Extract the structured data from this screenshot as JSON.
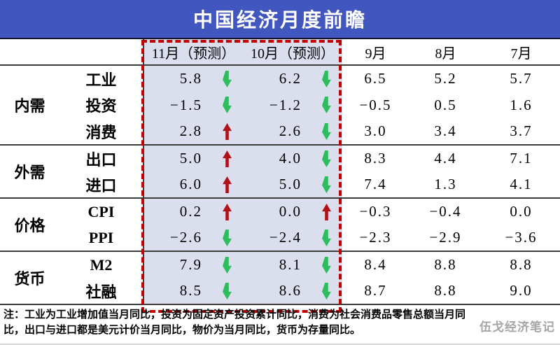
{
  "title": "中国经济月度前瞻",
  "watermark": "伍戈经济笔记",
  "note": {
    "line1": "注：工业为工业增加值当月同比，投资为固定资产投资累计同比，消费为社会消费品零售总额当月同",
    "line2": "比，出口与进口都是美元计价当月同比，物价为当月同比，货币为存量同比。"
  },
  "colors": {
    "header_bg": "#4156BE",
    "forecast_bg": "#DADEED",
    "dash_red": "#C00000",
    "up_red": "#B0121A",
    "down_green": "#2EBD5E",
    "line_dark": "#3C3C3C",
    "watermark_gray": "#A6A6A6"
  },
  "table": {
    "columns": [
      "11月（预测）",
      "10月（预测）",
      "9月",
      "8月",
      "7月"
    ],
    "groups": [
      "内需",
      "外需",
      "价格",
      "货币"
    ],
    "rows": [
      {
        "indicator": "工业",
        "v1": "5.8",
        "a1": "down",
        "v2": "6.2",
        "a2": "down",
        "v3": "6.5",
        "v4": "5.2",
        "v5": "5.7"
      },
      {
        "indicator": "投资",
        "v1": "−1.5",
        "a1": "down",
        "v2": "−1.2",
        "a2": "down",
        "v3": "−0.5",
        "v4": "0.5",
        "v5": "1.6"
      },
      {
        "indicator": "消费",
        "v1": "2.8",
        "a1": "up",
        "v2": "2.6",
        "a2": "down",
        "v3": "3.0",
        "v4": "3.4",
        "v5": "3.7"
      },
      {
        "indicator": "出口",
        "v1": "5.0",
        "a1": "up",
        "v2": "4.0",
        "a2": "down",
        "v3": "8.3",
        "v4": "4.4",
        "v5": "7.1"
      },
      {
        "indicator": "进口",
        "v1": "6.0",
        "a1": "up",
        "v2": "5.0",
        "a2": "down",
        "v3": "7.4",
        "v4": "1.3",
        "v5": "4.1"
      },
      {
        "indicator": "CPI",
        "v1": "0.2",
        "a1": "up",
        "v2": "0.0",
        "a2": "up",
        "v3": "−0.3",
        "v4": "−0.4",
        "v5": "0.0"
      },
      {
        "indicator": "PPI",
        "v1": "−2.6",
        "a1": "down",
        "v2": "−2.4",
        "a2": "down",
        "v3": "−2.3",
        "v4": "−2.9",
        "v5": "−3.6"
      },
      {
        "indicator": "M2",
        "v1": "7.9",
        "a1": "down",
        "v2": "8.1",
        "a2": "down",
        "v3": "8.4",
        "v4": "8.8",
        "v5": "8.8"
      },
      {
        "indicator": "社融",
        "v1": "8.5",
        "a1": "down",
        "v2": "8.6",
        "a2": "down",
        "v3": "8.7",
        "v4": "8.8",
        "v5": "9.0"
      }
    ]
  },
  "chart_data": {
    "type": "table",
    "title": "中国经济月度前瞻",
    "column_headers": [
      "11月（预测）",
      "10月（预测）",
      "9月",
      "8月",
      "7月"
    ],
    "legend": {
      "up_arrow": "较上月上升（红）",
      "down_arrow": "较上月下降（绿）"
    },
    "row_groups": [
      {
        "group": "内需",
        "rows": [
          {
            "indicator": "工业",
            "values": [
              5.8,
              6.2,
              6.5,
              5.2,
              5.7
            ],
            "forecast_trends": [
              "down",
              "down"
            ]
          },
          {
            "indicator": "投资",
            "values": [
              -1.5,
              -1.2,
              -0.5,
              0.5,
              1.6
            ],
            "forecast_trends": [
              "down",
              "down"
            ]
          },
          {
            "indicator": "消费",
            "values": [
              2.8,
              2.6,
              3.0,
              3.4,
              3.7
            ],
            "forecast_trends": [
              "up",
              "down"
            ]
          }
        ]
      },
      {
        "group": "外需",
        "rows": [
          {
            "indicator": "出口",
            "values": [
              5.0,
              4.0,
              8.3,
              4.4,
              7.1
            ],
            "forecast_trends": [
              "up",
              "down"
            ]
          },
          {
            "indicator": "进口",
            "values": [
              6.0,
              5.0,
              7.4,
              1.3,
              4.1
            ],
            "forecast_trends": [
              "up",
              "down"
            ]
          }
        ]
      },
      {
        "group": "价格",
        "rows": [
          {
            "indicator": "CPI",
            "values": [
              0.2,
              0.0,
              -0.3,
              -0.4,
              0.0
            ],
            "forecast_trends": [
              "up",
              "up"
            ]
          },
          {
            "indicator": "PPI",
            "values": [
              -2.6,
              -2.4,
              -2.3,
              -2.9,
              -3.6
            ],
            "forecast_trends": [
              "down",
              "down"
            ]
          }
        ]
      },
      {
        "group": "货币",
        "rows": [
          {
            "indicator": "M2",
            "values": [
              7.9,
              8.1,
              8.4,
              8.8,
              8.8
            ],
            "forecast_trends": [
              "down",
              "down"
            ]
          },
          {
            "indicator": "社融",
            "values": [
              8.5,
              8.6,
              8.7,
              8.8,
              9.0
            ],
            "forecast_trends": [
              "down",
              "down"
            ]
          }
        ]
      }
    ],
    "note": "注：工业为工业增加值当月同比，投资为固定资产投资累计同比，消费为社会消费品零售总额当月同比，出口与进口都是美元计价当月同比，物价为当月同比，货币为存量同比。"
  }
}
